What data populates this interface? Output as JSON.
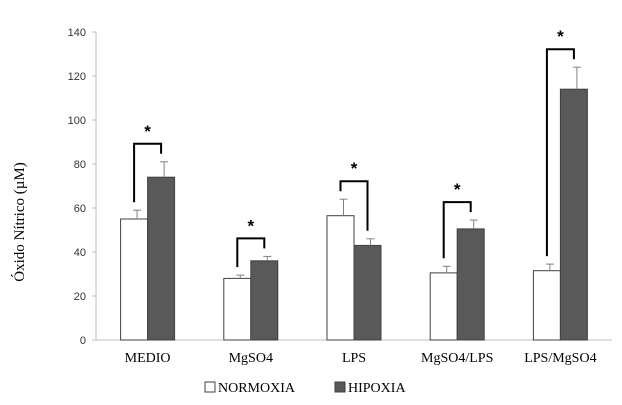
{
  "chart_data": {
    "type": "bar",
    "title": "",
    "xlabel": "",
    "ylabel": "Óxido Nítrico (µM)",
    "ylim": [
      0,
      140
    ],
    "yticks": [
      0,
      20,
      40,
      60,
      80,
      100,
      120,
      140
    ],
    "categories": [
      "MEDIO",
      "MgSO4",
      "LPS",
      "MgSO4/LPS",
      "LPS/MgSO4"
    ],
    "series": [
      {
        "name": "NORMOXIA",
        "color": "#ffffff",
        "values": [
          55,
          28,
          56.5,
          30.5,
          31.5
        ],
        "errors": [
          4,
          1.5,
          7.5,
          3,
          3
        ]
      },
      {
        "name": "HIPOXIA",
        "color": "#595959",
        "values": [
          74,
          36,
          43,
          50.5,
          114
        ],
        "errors": [
          7,
          2,
          3,
          4,
          10
        ]
      }
    ],
    "significance": [
      "*",
      "*",
      "*",
      "*",
      "*"
    ],
    "grid": false,
    "legend_position": "bottom"
  }
}
